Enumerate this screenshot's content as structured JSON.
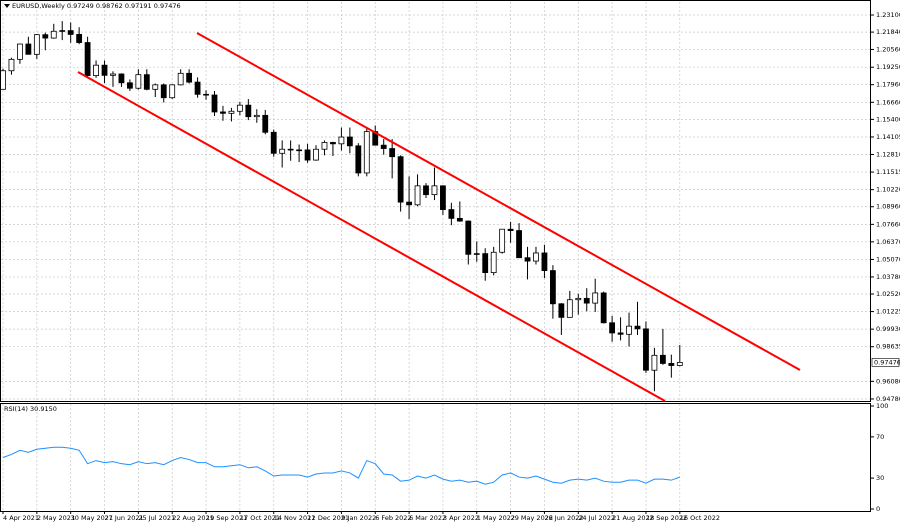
{
  "chart_data": {
    "type": "candlestick",
    "symbol": "EURUSD,Weekly",
    "categories": [
      "4 Apr 2021",
      null,
      null,
      null,
      "2 May 2021",
      null,
      null,
      null,
      "30 May 2021",
      null,
      null,
      null,
      "27 Jun 2021",
      null,
      null,
      null,
      "25 Jul 2021",
      null,
      null,
      null,
      "22 Aug 2021",
      null,
      null,
      null,
      "19 Sep 2021",
      null,
      null,
      null,
      "17 Oct 2021",
      null,
      null,
      null,
      "14 Nov 2021",
      null,
      null,
      null,
      "12 Dec 2021",
      null,
      null,
      null,
      "9 Jan 2022",
      null,
      null,
      null,
      "6 Feb 2022",
      null,
      null,
      null,
      "6 Mar 2022",
      null,
      null,
      null,
      "3 Apr 2022",
      null,
      null,
      null,
      "1 May 2022",
      null,
      null,
      null,
      "29 May 2022",
      null,
      null,
      null,
      "26 Jun 2022",
      null,
      null,
      null,
      "24 Jul 2022",
      null,
      null,
      null,
      "21 Aug 2022",
      null,
      null,
      null,
      "18 Sep 2022",
      null,
      null,
      null,
      "16 Oct 2022"
    ],
    "open": [
      1.1762,
      1.1899,
      1.1983,
      1.2096,
      1.202,
      1.2165,
      1.214,
      1.219,
      1.2195,
      1.2167,
      1.2107,
      1.1863,
      1.194,
      1.1865,
      1.1875,
      1.181,
      1.177,
      1.187,
      1.1762,
      1.1795,
      1.17,
      1.1795,
      1.188,
      1.1815,
      1.1725,
      1.172,
      1.1595,
      1.1585,
      1.16,
      1.1645,
      1.156,
      1.157,
      1.1445,
      1.129,
      1.132,
      1.1315,
      1.1315,
      1.124,
      1.132,
      1.137,
      1.136,
      1.141,
      1.1345,
      1.1145,
      1.145,
      1.135,
      1.1325,
      1.1265,
      1.093,
      1.091,
      1.105,
      1.0985,
      1.105,
      1.0875,
      1.081,
      1.079,
      1.0545,
      1.055,
      1.041,
      1.056,
      1.073,
      1.072,
      1.052,
      1.0495,
      1.0555,
      1.0425,
      1.018,
      1.008,
      1.021,
      1.022,
      1.0185,
      1.026,
      1.004,
      0.9965,
      0.9955,
      1.0015,
      0.9995,
      0.969,
      0.98,
      0.974,
      0.97249
    ],
    "high": [
      1.1915,
      1.1995,
      1.21,
      1.215,
      1.217,
      1.218,
      1.2245,
      1.2265,
      1.2255,
      1.222,
      1.215,
      1.1975,
      1.1975,
      1.1895,
      1.188,
      1.1835,
      1.191,
      1.191,
      1.1805,
      1.1805,
      1.18,
      1.191,
      1.191,
      1.185,
      1.1755,
      1.175,
      1.164,
      1.1625,
      1.167,
      1.169,
      1.1615,
      1.161,
      1.1465,
      1.1385,
      1.1385,
      1.1355,
      1.136,
      1.135,
      1.1385,
      1.1375,
      1.148,
      1.148,
      1.1365,
      1.148,
      1.1495,
      1.1395,
      1.1395,
      1.1275,
      1.112,
      1.1135,
      1.107,
      1.1185,
      1.1055,
      1.0925,
      1.0935,
      1.0795,
      1.064,
      1.059,
      1.06,
      1.073,
      1.0785,
      1.0775,
      1.06,
      1.06,
      1.0615,
      1.0465,
      1.0185,
      1.0275,
      1.0255,
      1.0295,
      1.0365,
      1.027,
      1.009,
      1.008,
      1.0115,
      1.0195,
      1.005,
      0.9855,
      0.9995,
      0.9805,
      0.98762
    ],
    "low": [
      1.176,
      1.187,
      1.195,
      1.202,
      1.1986,
      1.205,
      1.2135,
      1.2125,
      1.2105,
      1.2095,
      1.1845,
      1.1847,
      1.1807,
      1.178,
      1.178,
      1.175,
      1.176,
      1.1755,
      1.1705,
      1.1665,
      1.169,
      1.179,
      1.1805,
      1.17,
      1.1685,
      1.1565,
      1.153,
      1.1525,
      1.157,
      1.1535,
      1.1515,
      1.143,
      1.1265,
      1.1185,
      1.1235,
      1.1225,
      1.122,
      1.1235,
      1.1275,
      1.127,
      1.131,
      1.129,
      1.112,
      1.112,
      1.135,
      1.128,
      1.1105,
      1.086,
      1.0805,
      1.09,
      1.096,
      1.0945,
      1.0835,
      1.076,
      1.0785,
      1.047,
      1.049,
      1.035,
      1.039,
      1.055,
      1.063,
      1.052,
      1.036,
      1.047,
      1.037,
      1.007,
      0.995,
      1.008,
      1.01,
      1.0125,
      1.012,
      1.0035,
      0.99,
      0.991,
      0.9865,
      0.995,
      0.967,
      0.9535,
      0.973,
      0.9635,
      0.97191
    ],
    "close": [
      1.1899,
      1.1983,
      1.2096,
      1.202,
      1.2165,
      1.214,
      1.219,
      1.2195,
      1.2167,
      1.2107,
      1.1863,
      1.194,
      1.1865,
      1.1875,
      1.181,
      1.177,
      1.187,
      1.1762,
      1.1795,
      1.17,
      1.1795,
      1.188,
      1.1815,
      1.1725,
      1.172,
      1.1595,
      1.1585,
      1.16,
      1.1645,
      1.156,
      1.157,
      1.1445,
      1.129,
      1.132,
      1.1315,
      1.1315,
      1.124,
      1.132,
      1.137,
      1.136,
      1.141,
      1.1345,
      1.1145,
      1.145,
      1.135,
      1.1325,
      1.1265,
      1.093,
      1.091,
      1.105,
      1.0985,
      1.105,
      1.0875,
      1.081,
      1.079,
      1.0545,
      1.055,
      1.041,
      1.056,
      1.073,
      1.072,
      1.052,
      1.0495,
      1.0555,
      1.0425,
      1.018,
      1.008,
      1.021,
      1.022,
      1.0185,
      1.026,
      1.004,
      0.9965,
      0.9955,
      1.0015,
      0.9995,
      0.969,
      0.98,
      0.974,
      0.97249,
      0.97476
    ],
    "bull_color": "#ffffff",
    "bear_color": "#000000",
    "ylim": [
      0.9463,
      1.2406
    ],
    "yticks": [
      {
        "value": 1.231,
        "label": "1.23100"
      },
      {
        "value": 1.2184,
        "label": "1.21840"
      },
      {
        "value": 1.2056,
        "label": "1.20560"
      },
      {
        "value": 1.1925,
        "label": "1.19250"
      },
      {
        "value": 1.1796,
        "label": "1.17960"
      },
      {
        "value": 1.1666,
        "label": "1.16660"
      },
      {
        "value": 1.154,
        "label": "1.15400"
      },
      1.14105,
      {
        "value": 1.1281,
        "label": "1.12810"
      },
      1.11515,
      {
        "value": 1.1022,
        "label": "1.10220"
      },
      {
        "value": 1.0896,
        "label": "1.08960"
      },
      {
        "value": 1.0766,
        "label": "1.07660"
      },
      {
        "value": 1.0637,
        "label": "1.06370"
      },
      {
        "value": 1.0507,
        "label": "1.05070"
      },
      {
        "value": 1.0378,
        "label": "1.03780"
      },
      {
        "value": 1.0252,
        "label": "1.02520"
      },
      1.01225,
      {
        "value": 0.9993,
        "label": "0.99930"
      },
      0.98635,
      {
        "value": 0.9608,
        "label": "0.96080"
      },
      {
        "value": 0.9478,
        "label": "0.94780"
      }
    ],
    "grid": true,
    "indicator": {
      "type": "line",
      "title": "RSI(14)",
      "value_label": "30.9150",
      "color": "#1e90ff",
      "values": [
        50,
        53,
        57,
        55,
        58,
        59,
        60,
        60,
        59,
        57,
        44,
        47,
        45,
        46,
        44,
        43,
        46,
        44,
        45,
        43,
        47,
        50,
        48,
        45,
        45,
        41,
        41,
        42,
        43,
        40,
        41,
        37,
        32,
        33,
        33,
        33,
        31,
        34,
        35,
        35,
        37,
        35,
        30,
        47,
        44,
        34,
        33,
        27,
        28,
        32,
        30,
        33,
        29,
        27,
        28,
        26,
        27,
        24,
        26,
        33,
        35,
        31,
        30,
        32,
        29,
        26,
        25,
        28,
        29,
        28,
        30,
        27,
        26,
        26,
        28,
        28,
        25,
        29,
        29,
        28,
        30.915
      ],
      "ylim": [
        0,
        100
      ],
      "yticks": [
        100,
        70,
        30,
        0
      ]
    }
  }
}
